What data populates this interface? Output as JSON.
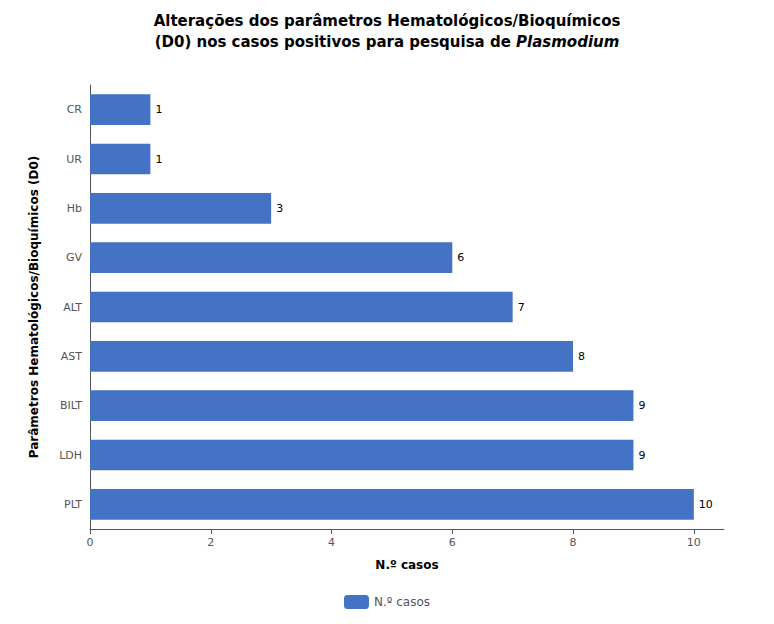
{
  "chart_data": {
    "type": "bar",
    "orientation": "horizontal",
    "title": "Alterações dos parâmetros Hematológicos/Bioquímicos",
    "subtitle": "(D0) nos casos positivos para pesquisa de Plasmodium",
    "categories": [
      "PLT",
      "LDH",
      "BILT",
      "AST",
      "ALT",
      "GV",
      "Hb",
      "UR",
      "CR"
    ],
    "series": [
      {
        "name": "N.º casos",
        "color": "#4472C4",
        "values": [
          10,
          9,
          9,
          8,
          7,
          6,
          3,
          1,
          1
        ]
      }
    ],
    "xlabel": "N.º casos",
    "ylabel": "Parâmetros Hematológicos/Bioquímicos (D0)",
    "xlim": [
      0,
      10.5
    ],
    "xticks": [
      0,
      2,
      4,
      6,
      8,
      10
    ],
    "grid": false,
    "legend": "bottom",
    "data_labels": true
  }
}
